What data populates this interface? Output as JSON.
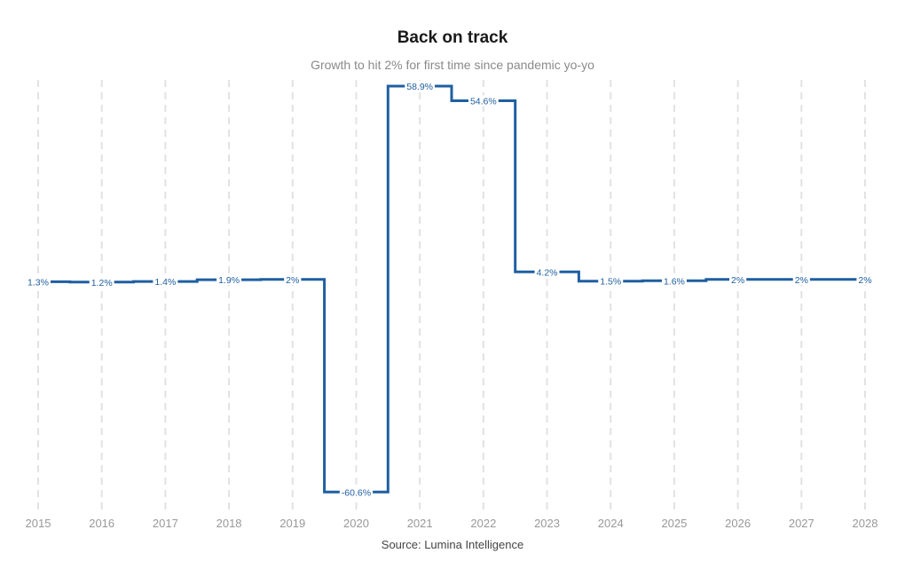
{
  "chart_data": {
    "type": "line",
    "step": true,
    "title": "Back on track",
    "subtitle": "Growth to hit 2% for first time since pandemic yo-yo",
    "source": "Source: Lumina Intelligence",
    "xlabel": "",
    "ylabel": "",
    "x": [
      2015,
      2016,
      2017,
      2018,
      2019,
      2020,
      2021,
      2022,
      2023,
      2024,
      2025,
      2026,
      2027,
      2028
    ],
    "values": [
      1.3,
      1.2,
      1.4,
      1.9,
      2,
      -60.6,
      58.9,
      54.6,
      4.2,
      1.5,
      1.6,
      2,
      2,
      2
    ],
    "labels": [
      "1.3%",
      "1.2%",
      "1.4%",
      "1.9%",
      "2%",
      "-60.6%",
      "58.9%",
      "54.6%",
      "4.2%",
      "1.5%",
      "1.6%",
      "2%",
      "2%",
      "2%"
    ],
    "xticks": [
      "2015",
      "2016",
      "2017",
      "2018",
      "2019",
      "2020",
      "2021",
      "2022",
      "2023",
      "2024",
      "2025",
      "2026",
      "2027",
      "2028"
    ],
    "xlim": [
      2015,
      2028
    ],
    "ylim": [
      -66,
      58.9
    ],
    "grid": "vertical dashed",
    "legend": "none",
    "line_color": "#1f5fa0",
    "grid_color": "#e2e2e2"
  }
}
